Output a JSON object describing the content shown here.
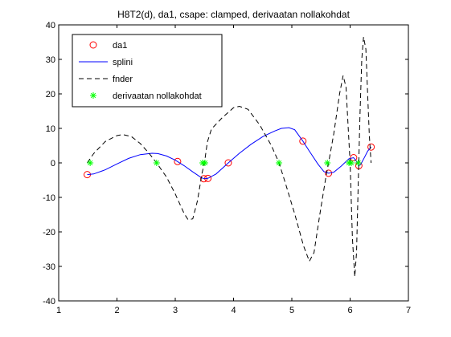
{
  "chart_data": {
    "type": "line",
    "title": "H8T2(d), da1, csape: clamped, derivaatan nollakohdat",
    "xlabel": "",
    "ylabel": "",
    "xlim": [
      1,
      7
    ],
    "ylim": [
      -40,
      40
    ],
    "xticks": [
      1,
      2,
      3,
      4,
      5,
      6,
      7
    ],
    "yticks": [
      -40,
      -30,
      -20,
      -10,
      0,
      10,
      20,
      30,
      40
    ],
    "grid": false,
    "legend_position": "top-left",
    "series": [
      {
        "name": "da1",
        "style": "markers",
        "marker": "circle",
        "color": "#ff0000",
        "points": [
          [
            1.49,
            -3.4
          ],
          [
            3.04,
            0.4
          ],
          [
            3.49,
            -4.6
          ],
          [
            3.56,
            -4.5
          ],
          [
            3.91,
            0.0
          ],
          [
            5.19,
            6.3
          ],
          [
            5.63,
            -3.0
          ],
          [
            6.06,
            1.5
          ],
          [
            6.15,
            -0.8
          ],
          [
            6.36,
            4.6
          ]
        ]
      },
      {
        "name": "splini",
        "style": "solid",
        "color": "#0000ff",
        "points": [
          [
            1.49,
            -3.4
          ],
          [
            1.6,
            -3.2
          ],
          [
            1.8,
            -2.0
          ],
          [
            2.0,
            -0.3
          ],
          [
            2.2,
            1.3
          ],
          [
            2.4,
            2.4
          ],
          [
            2.6,
            2.8
          ],
          [
            2.7,
            2.7
          ],
          [
            2.85,
            2.0
          ],
          [
            3.0,
            0.8
          ],
          [
            3.15,
            -0.8
          ],
          [
            3.3,
            -2.6
          ],
          [
            3.45,
            -4.3
          ],
          [
            3.5,
            -4.6
          ],
          [
            3.56,
            -4.5
          ],
          [
            3.7,
            -3.2
          ],
          [
            3.91,
            0.0
          ],
          [
            4.1,
            2.8
          ],
          [
            4.3,
            5.4
          ],
          [
            4.5,
            7.6
          ],
          [
            4.7,
            9.2
          ],
          [
            4.82,
            10.0
          ],
          [
            4.95,
            10.2
          ],
          [
            5.05,
            9.6
          ],
          [
            5.19,
            6.3
          ],
          [
            5.3,
            3.4
          ],
          [
            5.45,
            -0.4
          ],
          [
            5.55,
            -2.5
          ],
          [
            5.63,
            -3.0
          ],
          [
            5.72,
            -2.7
          ],
          [
            5.85,
            -0.9
          ],
          [
            5.98,
            1.2
          ],
          [
            6.06,
            1.5
          ],
          [
            6.1,
            0.7
          ],
          [
            6.15,
            -0.8
          ],
          [
            6.18,
            -0.5
          ],
          [
            6.25,
            1.7
          ],
          [
            6.3,
            3.4
          ],
          [
            6.36,
            4.6
          ]
        ]
      },
      {
        "name": "fnder",
        "style": "dashed",
        "color": "#000000",
        "points": [
          [
            1.49,
            0.0
          ],
          [
            1.6,
            2.7
          ],
          [
            1.8,
            6.2
          ],
          [
            2.0,
            7.9
          ],
          [
            2.1,
            8.2
          ],
          [
            2.25,
            7.6
          ],
          [
            2.4,
            5.6
          ],
          [
            2.55,
            2.8
          ],
          [
            2.68,
            0.0
          ],
          [
            2.85,
            -4.1
          ],
          [
            3.0,
            -9.0
          ],
          [
            3.15,
            -14.6
          ],
          [
            3.22,
            -16.5
          ],
          [
            3.3,
            -16.2
          ],
          [
            3.38,
            -11.0
          ],
          [
            3.46,
            -3.0
          ],
          [
            3.5,
            0.0
          ],
          [
            3.55,
            6.0
          ],
          [
            3.62,
            9.8
          ],
          [
            3.8,
            13.0
          ],
          [
            4.0,
            16.0
          ],
          [
            4.1,
            16.4
          ],
          [
            4.25,
            15.5
          ],
          [
            4.45,
            11.0
          ],
          [
            4.65,
            5.0
          ],
          [
            4.78,
            0.0
          ],
          [
            4.9,
            -6.5
          ],
          [
            5.05,
            -14.8
          ],
          [
            5.2,
            -24.0
          ],
          [
            5.3,
            -28.5
          ],
          [
            5.38,
            -26.0
          ],
          [
            5.48,
            -15.0
          ],
          [
            5.58,
            -4.5
          ],
          [
            5.63,
            0.0
          ],
          [
            5.72,
            8.5
          ],
          [
            5.82,
            20.0
          ],
          [
            5.88,
            25.3
          ],
          [
            5.93,
            22.0
          ],
          [
            5.98,
            6.0
          ],
          [
            6.0,
            0.0
          ],
          [
            6.04,
            -22.0
          ],
          [
            6.08,
            -33.0
          ],
          [
            6.11,
            -26.0
          ],
          [
            6.14,
            -6.0
          ],
          [
            6.17,
            14.0
          ],
          [
            6.2,
            30.0
          ],
          [
            6.23,
            36.5
          ],
          [
            6.27,
            33.0
          ],
          [
            6.3,
            20.0
          ],
          [
            6.33,
            8.0
          ],
          [
            6.36,
            0.0
          ]
        ]
      },
      {
        "name": "derivaatan nollakohdat",
        "style": "markers",
        "marker": "star",
        "color": "#00ff00",
        "points": [
          [
            1.54,
            0.0
          ],
          [
            2.68,
            0.0
          ],
          [
            3.47,
            0.0
          ],
          [
            3.51,
            0.0
          ],
          [
            4.78,
            0.0
          ],
          [
            5.61,
            0.0
          ],
          [
            5.98,
            0.0
          ],
          [
            6.02,
            0.0
          ],
          [
            6.14,
            0.0
          ]
        ]
      }
    ]
  }
}
